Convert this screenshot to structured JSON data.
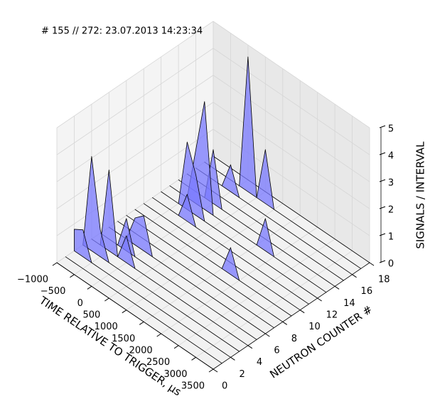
{
  "chart_data": {
    "type": "polygon3d",
    "title": "# 155 // 272: 23.07.2013 14:23:34",
    "x_label": "TIME RELATIVE TO TRIGGER, μs",
    "y_label": "NEUTRON COUNTER #",
    "z_label": "SIGNALS / INTERVAL",
    "color": "#7878ff",
    "grid": true,
    "xlim": [
      -1000,
      3500
    ],
    "ylim": [
      0,
      18
    ],
    "zlim": [
      0,
      5
    ],
    "xticks": [
      {
        "value": -1000,
        "label": "−1000"
      },
      {
        "value": -500,
        "label": "−500"
      },
      0,
      500,
      1000,
      1500,
      2000,
      2500,
      3000,
      3500
    ],
    "yticks": [
      0,
      2,
      4,
      6,
      8,
      10,
      12,
      14,
      16,
      18
    ],
    "zticks": [
      0,
      1,
      2,
      3,
      4,
      5
    ],
    "x": [
      -1000,
      -750,
      -500,
      -250,
      0,
      250,
      500,
      750,
      1000,
      1250,
      1500,
      1750,
      2000,
      2250,
      2500,
      2750,
      3000,
      3250,
      3500
    ],
    "y": [
      0,
      1,
      2,
      3,
      4,
      5,
      6,
      7,
      8,
      9,
      10,
      11,
      12,
      13,
      14,
      15,
      16,
      17,
      18
    ],
    "series": [
      {
        "values": [
          0,
          0,
          0,
          0,
          0,
          0,
          0,
          0,
          0,
          0,
          0,
          0,
          0,
          0,
          0,
          0,
          0,
          0,
          0
        ]
      },
      {
        "values": [
          0,
          0,
          0,
          0,
          0,
          0,
          0,
          0,
          0,
          0,
          0,
          0,
          0,
          0,
          0,
          0,
          0,
          0,
          0
        ]
      },
      {
        "values": [
          0.8,
          1,
          0,
          0,
          0,
          0,
          0,
          0,
          0,
          0,
          0,
          0,
          0,
          0,
          0,
          0,
          0,
          0,
          0
        ]
      },
      {
        "values": [
          0,
          3.5,
          1,
          0,
          0,
          0,
          0,
          0,
          0,
          0,
          0,
          0,
          0,
          0,
          0,
          0,
          0,
          0,
          0
        ]
      },
      {
        "values": [
          0,
          0,
          3,
          0,
          1,
          0,
          0,
          0,
          0,
          0,
          0,
          0,
          0,
          0,
          0,
          0,
          0,
          0,
          0
        ]
      },
      {
        "values": [
          0,
          0,
          0,
          1.2,
          0,
          0,
          0,
          0,
          0,
          0,
          0,
          0,
          0,
          0,
          0,
          0,
          0,
          0,
          0
        ]
      },
      {
        "values": [
          0,
          0,
          0,
          1,
          1.3,
          0,
          0,
          0,
          0,
          0,
          0,
          0,
          0,
          0,
          0,
          0,
          0,
          0,
          0
        ]
      },
      {
        "values": [
          0,
          0,
          0,
          0,
          0,
          0,
          0,
          0,
          0,
          0,
          0,
          0,
          0,
          0,
          0,
          0,
          0,
          0,
          0
        ]
      },
      {
        "values": [
          0,
          0,
          0,
          0,
          0,
          0,
          0,
          0,
          0,
          0,
          0,
          0,
          0,
          0,
          0,
          0,
          0,
          0,
          0
        ]
      },
      {
        "values": [
          0,
          0,
          0,
          0,
          0,
          0,
          0,
          0,
          0,
          0,
          0,
          1,
          0,
          0,
          0,
          0,
          0,
          0,
          0
        ]
      },
      {
        "values": [
          0,
          0,
          0,
          0,
          0,
          0,
          0,
          0,
          0,
          0,
          0,
          0,
          0,
          0,
          0,
          0,
          0,
          0,
          0
        ]
      },
      {
        "values": [
          0,
          0,
          0,
          0,
          1,
          0,
          0,
          0,
          0,
          0,
          0,
          0,
          0,
          0,
          0,
          0,
          0,
          0,
          0
        ]
      },
      {
        "values": [
          0,
          0,
          0,
          2.5,
          1.5,
          0,
          0,
          0,
          0,
          0,
          0,
          0,
          0,
          0,
          0,
          0,
          0,
          0,
          0
        ]
      },
      {
        "values": [
          0,
          0,
          0,
          2,
          4,
          0,
          0,
          0,
          0,
          0,
          0,
          1.2,
          0,
          0,
          0,
          0,
          0,
          0,
          0
        ]
      },
      {
        "values": [
          0,
          0,
          0,
          0,
          2,
          0,
          0,
          0,
          0,
          0,
          0,
          0,
          0,
          0,
          0,
          0,
          0,
          0,
          0
        ]
      },
      {
        "values": [
          0,
          0,
          0,
          0,
          0,
          0,
          0,
          0,
          0,
          0,
          0,
          0,
          0,
          0,
          0,
          0,
          0,
          0,
          0
        ]
      },
      {
        "values": [
          0,
          0,
          0,
          0,
          1,
          0,
          0,
          0,
          0,
          0,
          0,
          0,
          0,
          0,
          0,
          0,
          0,
          0,
          0
        ]
      },
      {
        "values": [
          0,
          0,
          0,
          0,
          0,
          5,
          0,
          2,
          0,
          0,
          0,
          0,
          0,
          0,
          0,
          0,
          0,
          0,
          0
        ]
      },
      {
        "values": [
          0,
          0,
          0,
          0,
          0,
          0,
          0,
          0,
          0,
          0,
          0,
          0,
          0,
          0,
          0,
          0,
          0,
          0,
          0
        ]
      }
    ]
  }
}
